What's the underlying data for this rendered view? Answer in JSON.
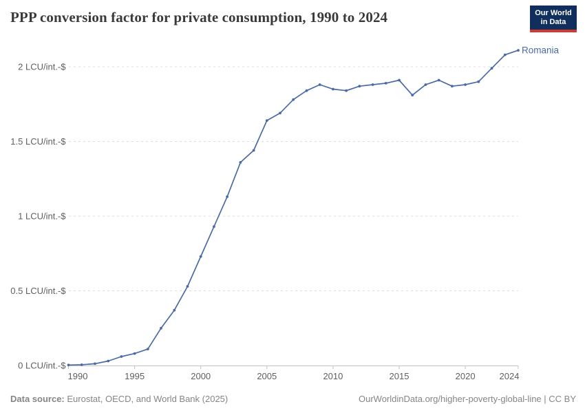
{
  "header": {
    "title": "PPP conversion factor for private consumption, 1990 to 2024",
    "logo": {
      "line1": "Our World",
      "line2": "in Data",
      "bg_color": "#112F5C",
      "accent_color": "#CF3B32"
    }
  },
  "chart_data": {
    "type": "line",
    "title": "PPP conversion factor for private consumption, 1990 to 2024",
    "xlabel": "",
    "ylabel": "LCU/int.-$",
    "xlim": [
      1990,
      2024
    ],
    "ylim": [
      0,
      2.15
    ],
    "grid": "horizontal dashed",
    "legend_position": "end-of-line label",
    "line_color": "#4A6AA5",
    "grid_color": "#DCDCDC",
    "axis_color": "#C2C2C2",
    "tick_text_color": "#5E5E5E",
    "x_ticks": [
      1990,
      1995,
      2000,
      2005,
      2010,
      2015,
      2020,
      2024
    ],
    "y_ticks": [
      {
        "value": 0,
        "label": "0 LCU/int.-$"
      },
      {
        "value": 0.5,
        "label": "0.5 LCU/int.-$"
      },
      {
        "value": 1,
        "label": "1 LCU/int.-$"
      },
      {
        "value": 1.5,
        "label": "1.5 LCU/int.-$"
      },
      {
        "value": 2,
        "label": "2 LCU/int.-$"
      }
    ],
    "series": [
      {
        "name": "Romania",
        "x": [
          1990,
          1991,
          1992,
          1993,
          1994,
          1995,
          1996,
          1997,
          1998,
          1999,
          2000,
          2001,
          2002,
          2003,
          2004,
          2005,
          2006,
          2007,
          2008,
          2009,
          2010,
          2011,
          2012,
          2013,
          2014,
          2015,
          2016,
          2017,
          2018,
          2019,
          2020,
          2021,
          2022,
          2023,
          2024
        ],
        "values": [
          0.003,
          0.005,
          0.012,
          0.03,
          0.06,
          0.08,
          0.11,
          0.25,
          0.37,
          0.53,
          0.73,
          0.93,
          1.13,
          1.36,
          1.44,
          1.64,
          1.69,
          1.78,
          1.84,
          1.88,
          1.85,
          1.84,
          1.87,
          1.88,
          1.89,
          1.91,
          1.81,
          1.88,
          1.91,
          1.87,
          1.88,
          1.9,
          1.99,
          2.08,
          2.11
        ]
      }
    ]
  },
  "footer": {
    "source_label": "Data source:",
    "source_text": " Eurostat, OECD, and World Bank (2025)",
    "link_text": "OurWorldinData.org/higher-poverty-global-line | CC BY"
  }
}
